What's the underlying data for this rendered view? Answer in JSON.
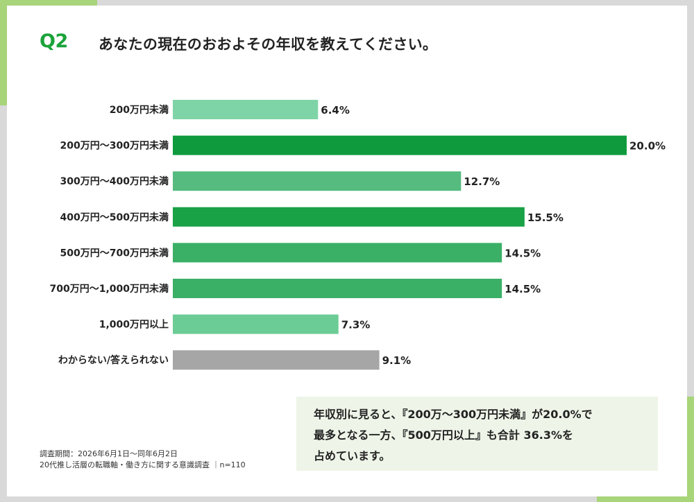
{
  "question": {
    "label": "Q2",
    "text": "あなたの現在のおおよその年収を教えてください。"
  },
  "chart_data": {
    "type": "bar",
    "orientation": "horizontal",
    "categories": [
      "200万円未満",
      "200万円〜300万円未満",
      "300万円〜400万円未満",
      "400万円〜500万円未満",
      "500万円〜700万円未満",
      "700万円〜1,000万円未満",
      "1,000万円以上",
      "わからない/答えられない"
    ],
    "values": [
      6.4,
      20.0,
      12.7,
      15.5,
      14.5,
      14.5,
      7.3,
      9.1
    ],
    "value_labels": [
      "6.4%",
      "20.0%",
      "12.7%",
      "15.5%",
      "14.5%",
      "14.5%",
      "7.3%",
      "9.1%"
    ],
    "colors": [
      "#7fd4a7",
      "#0f9a3d",
      "#55bb7f",
      "#1aa247",
      "#3aaf66",
      "#3aaf66",
      "#6ccc96",
      "#a6a6a6"
    ],
    "unit": "%",
    "xlim": [
      0,
      20.0
    ],
    "grid": false,
    "legend": "none"
  },
  "summary": {
    "lines": [
      "年収別に見ると、『200万〜300万円未満』が20.0%で",
      "最多となる一方、『500万円以上』も合計 36.3%を",
      "占めています。"
    ]
  },
  "footnote": {
    "period": "調査期間：2026年6月1日〜同年6月2日",
    "survey": "20代推し活層の転職軸・働き方に関する意識調査 ｜n=110"
  },
  "theme": {
    "accent_green": "#a8d47a",
    "title_green": "#1aa33a",
    "summary_bg": "#eef5e8"
  }
}
